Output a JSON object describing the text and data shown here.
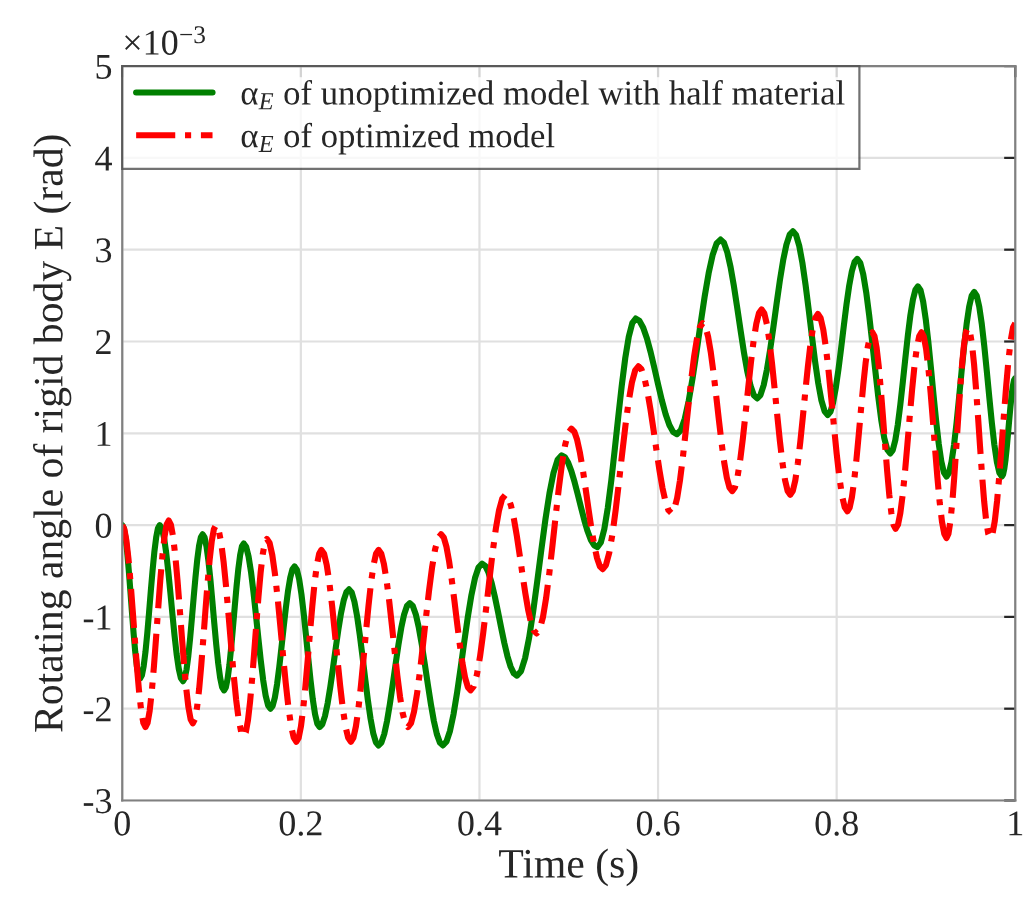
{
  "chart_data": {
    "type": "line",
    "xlabel": "Time (s)",
    "ylabel": "Rotating angle of rigid body E (rad)",
    "xlim": [
      0,
      1
    ],
    "xticks": [
      0,
      0.2,
      0.4,
      0.6,
      0.8,
      1
    ],
    "ylim": [
      -3,
      5
    ],
    "yticks": [
      -3,
      -2,
      -1,
      0,
      1,
      2,
      3,
      4,
      5
    ],
    "grid": true,
    "legend": "top left",
    "marker": "none",
    "annotations": [
      "×10$^{−3}$"
    ],
    "series": [
      {
        "name": "α$_{E}$ of unoptimized model with half material",
        "color": "#008000",
        "line_style": "solid",
        "x": [
          0,
          0.02,
          0.042,
          0.068,
          0.09,
          0.114,
          0.136,
          0.166,
          0.193,
          0.221,
          0.254,
          0.287,
          0.322,
          0.359,
          0.403,
          0.442,
          0.492,
          0.532,
          0.575,
          0.621,
          0.67,
          0.711,
          0.751,
          0.79,
          0.823,
          0.86,
          0.891,
          0.923,
          0.954,
          0.985,
          1.0
        ],
        "values": [
          0,
          -1.67,
          0,
          -1.7,
          -0.1,
          -1.8,
          -0.2,
          -2.0,
          -0.45,
          -2.2,
          -0.7,
          -2.4,
          -0.85,
          -2.4,
          -0.42,
          -1.64,
          0.76,
          -0.24,
          2.25,
          0.99,
          3.11,
          1.38,
          3.2,
          1.2,
          2.9,
          0.78,
          2.6,
          0.53,
          2.54,
          0.53,
          1.6
        ]
      },
      {
        "name": "α$_{E}$ of optimized model",
        "color": "#ff0000",
        "line_style": "dashdot",
        "x": [
          0,
          0.026,
          0.052,
          0.079,
          0.105,
          0.136,
          0.162,
          0.195,
          0.223,
          0.256,
          0.287,
          0.32,
          0.357,
          0.39,
          0.429,
          0.464,
          0.503,
          0.538,
          0.578,
          0.615,
          0.65,
          0.683,
          0.716,
          0.748,
          0.779,
          0.812,
          0.84,
          0.866,
          0.895,
          0.923,
          0.947,
          0.972,
          1.0
        ],
        "values": [
          0,
          -2.2,
          0.05,
          -2.16,
          0,
          -2.3,
          -0.15,
          -2.36,
          -0.27,
          -2.36,
          -0.27,
          -2.2,
          -0.1,
          -1.8,
          0.33,
          -1.18,
          1.05,
          -0.48,
          1.73,
          0.13,
          2.2,
          0.37,
          2.35,
          0.33,
          2.3,
          0.15,
          2.1,
          -0.04,
          2.1,
          -0.14,
          2.15,
          -0.14,
          2.2
        ]
      }
    ]
  }
}
